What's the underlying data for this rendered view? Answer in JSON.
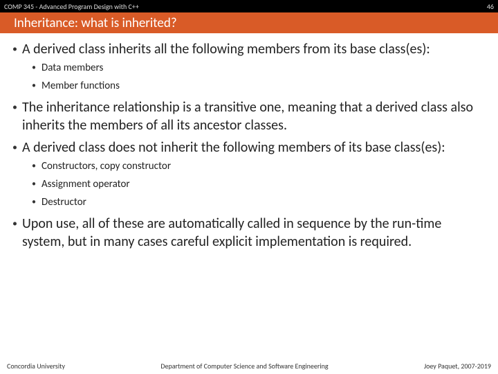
{
  "topbar": {
    "course": "COMP 345 - Advanced Program Design with C++",
    "page": "46"
  },
  "title": "Inheritance: what is inherited?",
  "bullets": [
    {
      "text": "A derived class inherits all the following members from its base class(es):",
      "sub": [
        {
          "text": "Data members"
        },
        {
          "text": "Member functions"
        }
      ]
    },
    {
      "text": "The inheritance relationship is a transitive one, meaning that a derived class also inherits the members of all its ancestor classes."
    },
    {
      "text": "A derived class does not inherit the following members of its base class(es):",
      "sub": [
        {
          "text": "Constructors, copy constructor"
        },
        {
          "text": "Assignment operator"
        },
        {
          "text": "Destructor"
        }
      ]
    },
    {
      "text": "Upon use, all of these are automatically called in sequence by the run-time system, but in many cases careful explicit implementation is required."
    }
  ],
  "footer": {
    "left": "Concordia University",
    "center": "Department of Computer Science and Software Engineering",
    "right": "Joey Paquet, 2007-2019"
  },
  "colors": {
    "topbar_bg": "#000000",
    "titlebar_bg": "#d95b27",
    "text": "#222222"
  }
}
